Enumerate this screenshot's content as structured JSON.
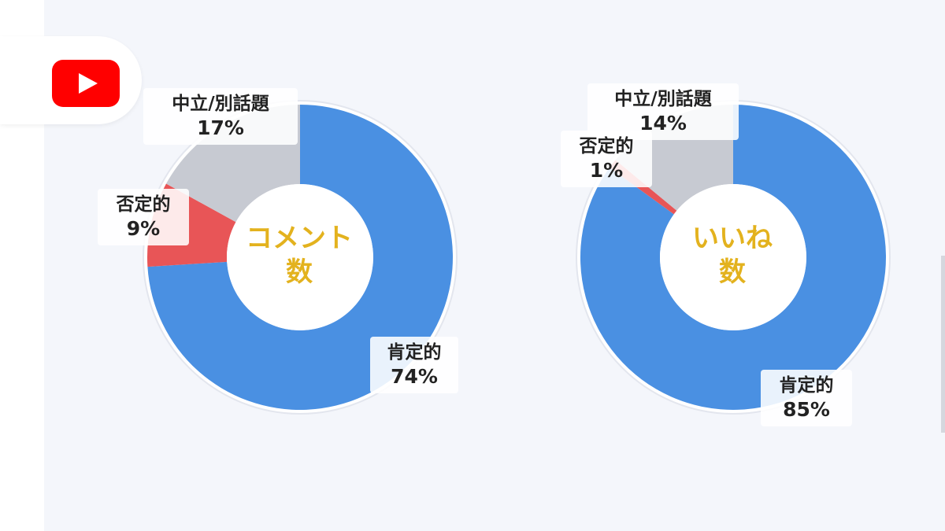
{
  "colors": {
    "positive": "#4a90e2",
    "negative": "#e85557",
    "neutral": "#c7cad2",
    "center_text": "#e3b21e",
    "youtube_red": "#ff0000"
  },
  "icons": {
    "logo": "youtube-play-icon"
  },
  "chart_data": [
    {
      "type": "pie",
      "style": "donut",
      "center_label": [
        "コメント",
        "数"
      ],
      "categories": [
        "肯定的",
        "否定的",
        "中立/別話題"
      ],
      "values": [
        74,
        9,
        17
      ],
      "value_labels": [
        "74%",
        "9%",
        "17%"
      ],
      "unit": "%"
    },
    {
      "type": "pie",
      "style": "donut",
      "center_label": [
        "いいね",
        "数"
      ],
      "categories": [
        "肯定的",
        "否定的",
        "中立/別話題"
      ],
      "values": [
        85,
        1,
        14
      ],
      "value_labels": [
        "85%",
        "1%",
        "14%"
      ],
      "unit": "%"
    }
  ]
}
